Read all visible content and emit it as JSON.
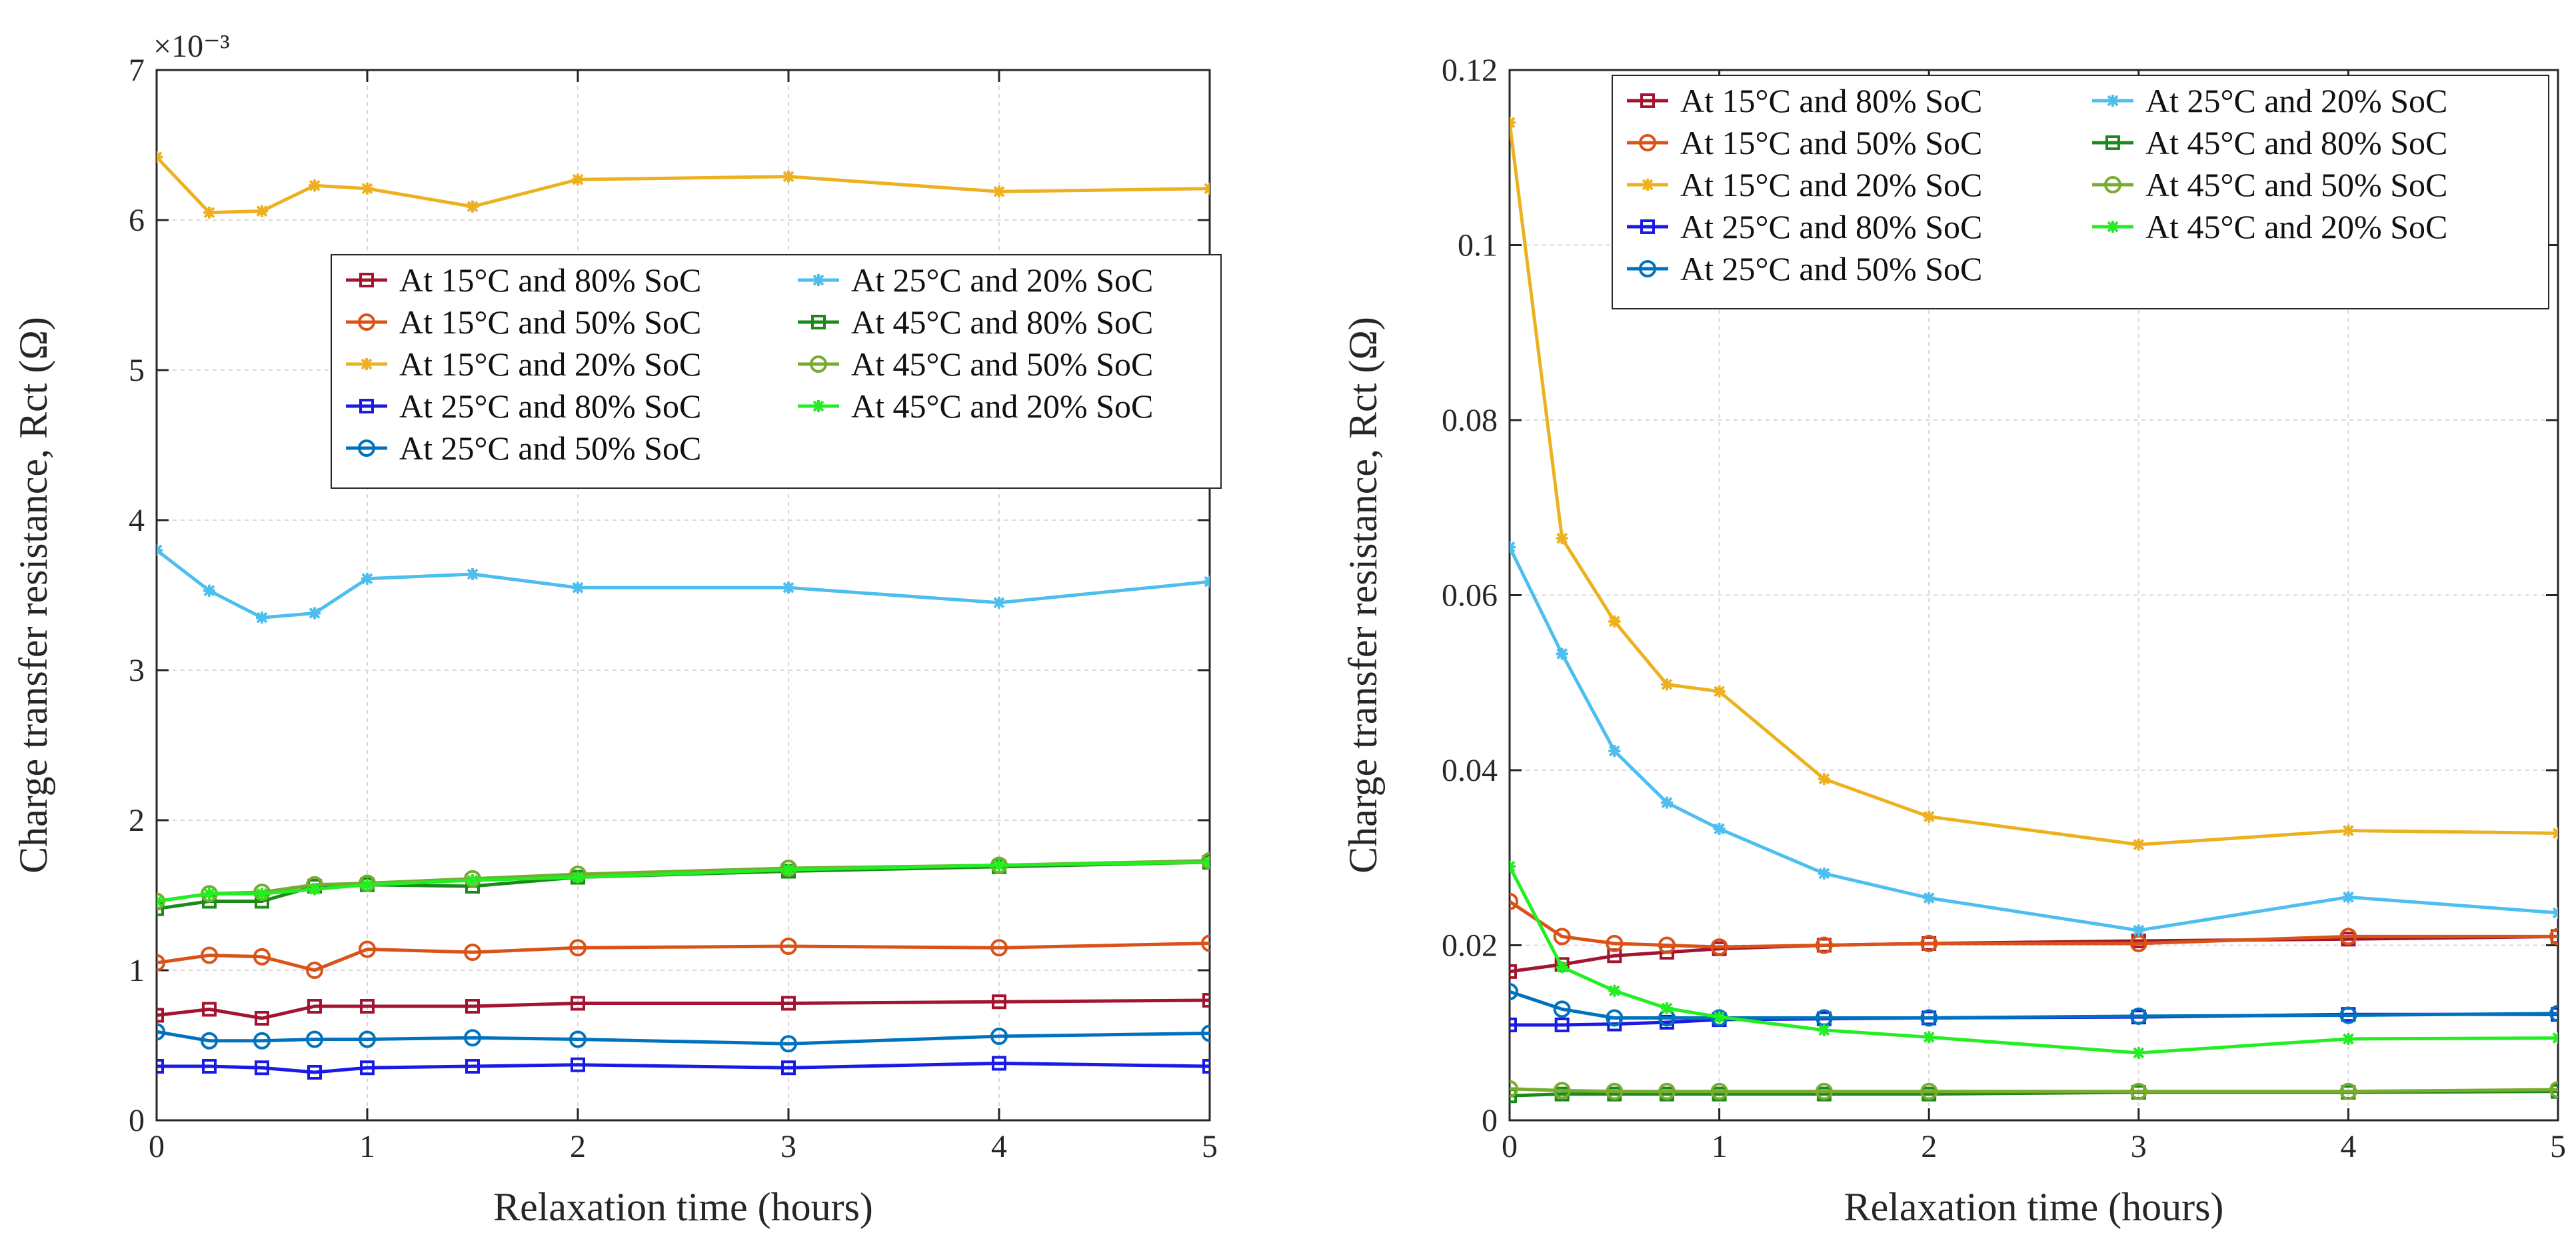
{
  "chart_data": [
    {
      "type": "line",
      "xlabel": "Relaxation time (hours)",
      "ylabel": "Charge transfer resistance, Rct (Ω)",
      "y_exponent": "×10⁻³",
      "xlim": [
        0,
        5
      ],
      "ylim": [
        0,
        7
      ],
      "xticks": [
        "0",
        "1",
        "2",
        "3",
        "4",
        "5"
      ],
      "yticks": [
        "0",
        "1",
        "2",
        "3",
        "4",
        "5",
        "6",
        "7"
      ],
      "grid": true,
      "legend_position": "upper-right",
      "x": [
        0,
        0.25,
        0.5,
        0.75,
        1,
        1.5,
        2,
        3,
        4,
        5
      ],
      "series": [
        {
          "name": "At 15°C and 80% SoC",
          "color": "#A2142F",
          "marker": "square",
          "values": [
            0.7,
            0.74,
            0.68,
            0.76,
            0.76,
            0.76,
            0.78,
            0.78,
            0.79,
            0.8
          ]
        },
        {
          "name": "At 15°C and 50% SoC",
          "color": "#D95319",
          "marker": "circle",
          "values": [
            1.05,
            1.1,
            1.09,
            1.0,
            1.14,
            1.12,
            1.15,
            1.16,
            1.15,
            1.18
          ]
        },
        {
          "name": "At 15°C and 20% SoC",
          "color": "#EDB120",
          "marker": "star",
          "values": [
            6.42,
            6.05,
            6.06,
            6.23,
            6.21,
            6.09,
            6.27,
            6.29,
            6.19,
            6.21
          ]
        },
        {
          "name": "At 25°C and 80% SoC",
          "color": "#1A1AE6",
          "marker": "square",
          "values": [
            0.36,
            0.36,
            0.35,
            0.32,
            0.35,
            0.36,
            0.37,
            0.35,
            0.38,
            0.36
          ]
        },
        {
          "name": "At 25°C and 50% SoC",
          "color": "#0072BD",
          "marker": "circle",
          "values": [
            0.59,
            0.53,
            0.53,
            0.54,
            0.54,
            0.55,
            0.54,
            0.51,
            0.56,
            0.58
          ]
        },
        {
          "name": "At 25°C and 20% SoC",
          "color": "#4DBEEE",
          "marker": "star",
          "values": [
            3.8,
            3.53,
            3.35,
            3.38,
            3.61,
            3.64,
            3.55,
            3.55,
            3.45,
            3.59
          ]
        },
        {
          "name": "At 45°C and 80% SoC",
          "color": "#1B8A1B",
          "marker": "square",
          "values": [
            1.41,
            1.46,
            1.46,
            1.56,
            1.57,
            1.56,
            1.62,
            1.66,
            1.69,
            1.72
          ]
        },
        {
          "name": "At 45°C and 50% SoC",
          "color": "#77AC30",
          "marker": "circle",
          "values": [
            1.46,
            1.51,
            1.52,
            1.57,
            1.58,
            1.61,
            1.64,
            1.68,
            1.7,
            1.73
          ]
        },
        {
          "name": "At 45°C and 20% SoC",
          "color": "#22EE22",
          "marker": "star",
          "values": [
            1.46,
            1.51,
            1.51,
            1.54,
            1.57,
            1.6,
            1.62,
            1.67,
            1.7,
            1.72
          ]
        }
      ]
    },
    {
      "type": "line",
      "xlabel": "Relaxation time (hours)",
      "ylabel": "Charge transfer resistance, Rct (Ω)",
      "xlim": [
        0,
        5
      ],
      "ylim": [
        0,
        0.12
      ],
      "xticks": [
        "0",
        "1",
        "2",
        "3",
        "4",
        "5"
      ],
      "yticks": [
        "0",
        "0.02",
        "0.04",
        "0.06",
        "0.08",
        "0.1",
        "0.12"
      ],
      "grid": true,
      "legend_position": "upper-right",
      "x": [
        0,
        0.25,
        0.5,
        0.75,
        1,
        1.5,
        2,
        3,
        4,
        5
      ],
      "series": [
        {
          "name": "At 15°C and 80% SoC",
          "color": "#A2142F",
          "marker": "square",
          "values": [
            0.017,
            0.0178,
            0.0188,
            0.0192,
            0.0196,
            0.02,
            0.0202,
            0.0205,
            0.0207,
            0.021
          ]
        },
        {
          "name": "At 15°C and 50% SoC",
          "color": "#D95319",
          "marker": "circle",
          "values": [
            0.025,
            0.021,
            0.0202,
            0.02,
            0.0198,
            0.02,
            0.0202,
            0.0202,
            0.021,
            0.021
          ]
        },
        {
          "name": "At 15°C and 20% SoC",
          "color": "#EDB120",
          "marker": "star",
          "values": [
            0.114,
            0.0665,
            0.057,
            0.0498,
            0.049,
            0.039,
            0.0347,
            0.0315,
            0.0331,
            0.0328
          ]
        },
        {
          "name": "At 25°C and 80% SoC",
          "color": "#1A1AE6",
          "marker": "square",
          "values": [
            0.0109,
            0.0109,
            0.011,
            0.0112,
            0.0115,
            0.0116,
            0.0117,
            0.0118,
            0.0121,
            0.0121
          ]
        },
        {
          "name": "At 25°C and 50% SoC",
          "color": "#0072BD",
          "marker": "circle",
          "values": [
            0.0147,
            0.0127,
            0.0117,
            0.0117,
            0.0117,
            0.0117,
            0.0117,
            0.0119,
            0.012,
            0.0122
          ]
        },
        {
          "name": "At 25°C and 20% SoC",
          "color": "#4DBEEE",
          "marker": "star",
          "values": [
            0.0655,
            0.0533,
            0.0422,
            0.0363,
            0.0333,
            0.0282,
            0.0254,
            0.0217,
            0.0255,
            0.0237
          ]
        },
        {
          "name": "At 45°C and 80% SoC",
          "color": "#1B8A1B",
          "marker": "square",
          "values": [
            0.0028,
            0.003,
            0.003,
            0.003,
            0.003,
            0.003,
            0.003,
            0.0032,
            0.0032,
            0.0033
          ]
        },
        {
          "name": "At 45°C and 50% SoC",
          "color": "#77AC30",
          "marker": "circle",
          "values": [
            0.0036,
            0.0034,
            0.0033,
            0.0033,
            0.0033,
            0.0033,
            0.0033,
            0.0033,
            0.0033,
            0.0035
          ]
        },
        {
          "name": "At 45°C and 20% SoC",
          "color": "#22EE22",
          "marker": "star",
          "values": [
            0.029,
            0.0175,
            0.0148,
            0.0128,
            0.0118,
            0.0103,
            0.0095,
            0.0077,
            0.0093,
            0.0094
          ]
        }
      ]
    }
  ]
}
